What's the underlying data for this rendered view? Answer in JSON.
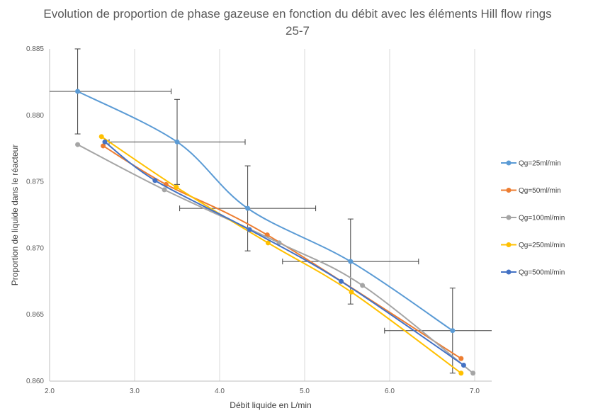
{
  "chart_data": {
    "type": "line",
    "title": "Evolution  de proportion de phase gazeuse en fonction du débit avec les éléments Hill flow rings 25-7",
    "xlabel": "Débit liquide en L/min",
    "ylabel": "Proportion de liquide dans le réacteur",
    "xlim": [
      2.0,
      7.2
    ],
    "ylim": [
      0.86,
      0.885
    ],
    "x_ticks": [
      "2.0",
      "3.0",
      "4.0",
      "5.0",
      "6.0",
      "7.0"
    ],
    "y_ticks": [
      "0.860",
      "0.865",
      "0.870",
      "0.875",
      "0.880",
      "0.885"
    ],
    "grid": "vertical",
    "legend_position": "right",
    "smooth": true,
    "series": [
      {
        "name": "Qg=25ml/min",
        "color": "#5B9BD5",
        "points": [
          [
            2.33,
            0.8818
          ],
          [
            3.5,
            0.878
          ],
          [
            4.33,
            0.873
          ],
          [
            5.54,
            0.869
          ],
          [
            6.74,
            0.8638
          ]
        ],
        "error_x": [
          1.1,
          0.8,
          0.8,
          0.8,
          0.8
        ],
        "error_y": [
          0.0032,
          0.0032,
          0.0032,
          0.0032,
          0.0032
        ]
      },
      {
        "name": "Qg=50ml/min",
        "color": "#ED7D31",
        "points": [
          [
            2.63,
            0.8777
          ],
          [
            3.37,
            0.8748
          ],
          [
            4.56,
            0.871
          ],
          [
            6.84,
            0.8617
          ]
        ]
      },
      {
        "name": "Qg=100ml/min",
        "color": "#A5A5A5",
        "points": [
          [
            2.33,
            0.8778
          ],
          [
            3.35,
            0.8744
          ],
          [
            4.7,
            0.8704
          ],
          [
            5.68,
            0.8672
          ],
          [
            6.98,
            0.8606
          ]
        ]
      },
      {
        "name": "Qg=250ml/min",
        "color": "#FFC000",
        "points": [
          [
            2.61,
            0.8784
          ],
          [
            3.49,
            0.8746
          ],
          [
            4.57,
            0.8704
          ],
          [
            5.55,
            0.8667
          ],
          [
            6.84,
            0.8606
          ]
        ]
      },
      {
        "name": "Qg=500ml/min",
        "color": "#4472C4",
        "points": [
          [
            2.65,
            0.878
          ],
          [
            3.24,
            0.8751
          ],
          [
            4.35,
            0.8714
          ],
          [
            5.43,
            0.8675
          ],
          [
            6.87,
            0.8612
          ]
        ]
      }
    ]
  }
}
